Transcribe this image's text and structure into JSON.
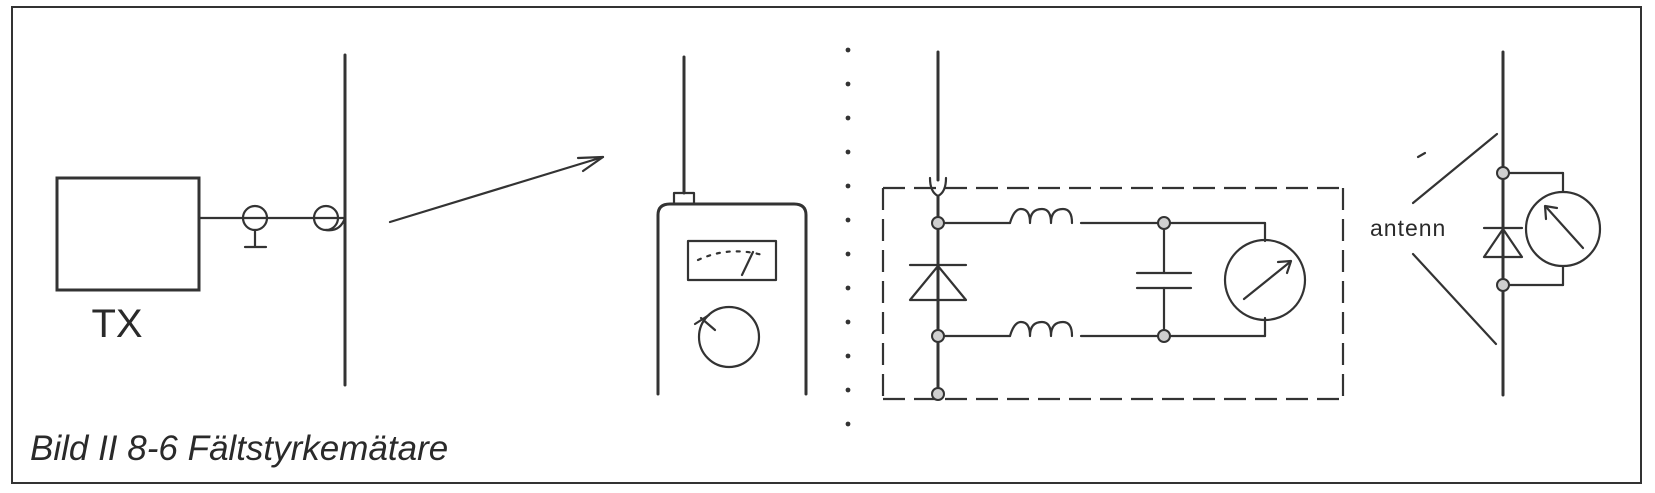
{
  "labels": {
    "transmitter": "TX",
    "antenna": "antenn",
    "caption": "Bild II 8-6  Fältstyrkemätare"
  },
  "colors": {
    "ink": "#333333",
    "background": "#ffffff"
  }
}
